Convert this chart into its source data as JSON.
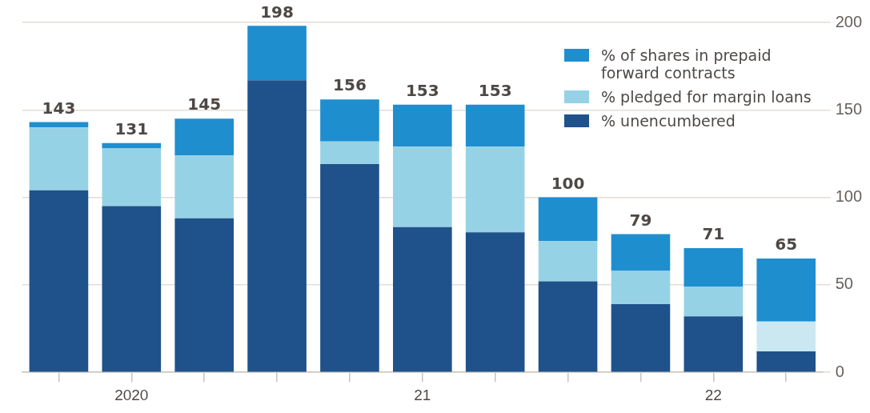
{
  "chart_data": {
    "type": "bar",
    "stacked": true,
    "categories": [
      null,
      "2020",
      null,
      null,
      null,
      "21",
      null,
      null,
      null,
      "22",
      null
    ],
    "series": [
      {
        "name": "% unencumbered",
        "color": "#1f528a",
        "values": [
          104,
          95,
          88,
          167,
          119,
          83,
          80,
          52,
          39,
          32,
          12
        ]
      },
      {
        "name": "% pledged for margin loans",
        "color": "#96d2e5",
        "colors": [
          "#96d2e5",
          "#96d2e5",
          "#96d2e5",
          "#96d2e5",
          "#96d2e5",
          "#96d2e5",
          "#96d2e5",
          "#96d2e5",
          "#96d2e5",
          "#96d2e5",
          "#cbe8f2"
        ],
        "values": [
          36,
          33,
          36,
          0,
          13,
          46,
          49,
          23,
          19,
          17,
          17
        ]
      },
      {
        "name": "% of shares in prepaid forward contracts",
        "color": "#1f8ecf",
        "values": [
          3,
          3,
          21,
          31,
          24,
          24,
          24,
          25,
          21,
          22,
          36
        ]
      }
    ],
    "totals": [
      "143",
      "131",
      "145",
      "198",
      "156",
      "153",
      "153",
      "100",
      "79",
      "71",
      "65"
    ],
    "ylim": [
      0,
      200
    ],
    "yticks": [
      0,
      50,
      100,
      150,
      200
    ],
    "grid": "y",
    "legend": "top right"
  }
}
